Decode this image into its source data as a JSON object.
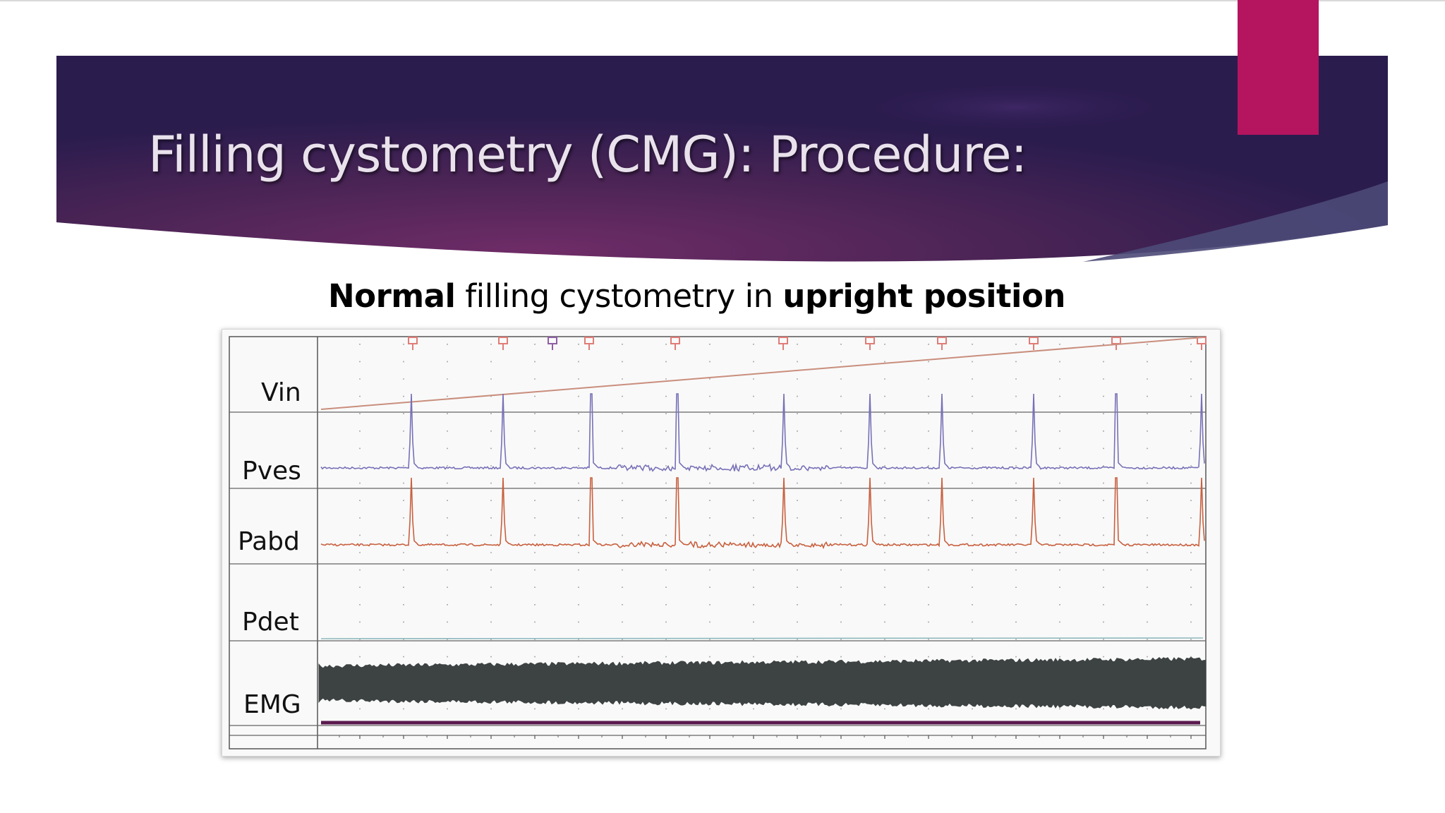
{
  "slide": {
    "title": "Filling cystometry (CMG): Procedure:",
    "subtitle": {
      "part1_bold": "Normal",
      "part2": " filling cystometry in ",
      "part3_bold": "upright position"
    }
  },
  "colors": {
    "banner_dark": "#2b1c4e",
    "banner_mid": "#6b2d68",
    "accent": "#b5145f",
    "vin_trace": "#c98e7d",
    "pves_trace": "#7771b7",
    "pabd_trace": "#c8603f",
    "pdet_trace": "#8fb9bd",
    "emg_trace": "#3d4242",
    "baseline_bar": "#5a1a4e"
  },
  "chart_data": {
    "type": "line",
    "title": "",
    "channels": [
      {
        "name": "Vin",
        "description_shape": "linear ramp"
      },
      {
        "name": "Pves",
        "spikes": true
      },
      {
        "name": "Pabd",
        "spikes": true
      },
      {
        "name": "Pdet",
        "description_shape": "flat"
      },
      {
        "name": "EMG",
        "description_shape": "continuous activity band"
      }
    ],
    "event_markers": 11,
    "spike_events": 10,
    "grid": true
  }
}
